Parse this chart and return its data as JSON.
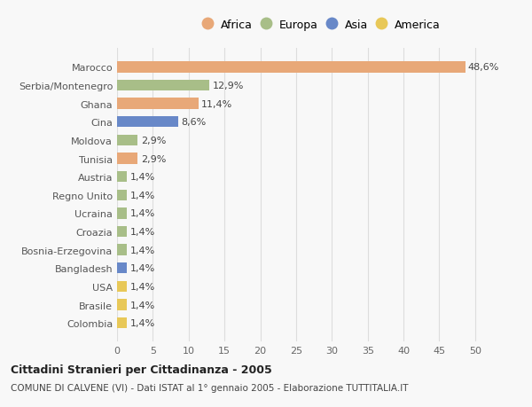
{
  "categories": [
    "Colombia",
    "Brasile",
    "USA",
    "Bangladesh",
    "Bosnia-Erzegovina",
    "Croazia",
    "Ucraina",
    "Regno Unito",
    "Austria",
    "Tunisia",
    "Moldova",
    "Cina",
    "Ghana",
    "Serbia/Montenegro",
    "Marocco"
  ],
  "values": [
    1.4,
    1.4,
    1.4,
    1.4,
    1.4,
    1.4,
    1.4,
    1.4,
    1.4,
    2.9,
    2.9,
    8.6,
    11.4,
    12.9,
    48.6
  ],
  "bar_colors": [
    "#E8C858",
    "#E8C858",
    "#E8C858",
    "#6888C8",
    "#A8BE88",
    "#A8BE88",
    "#A8BE88",
    "#A8BE88",
    "#A8BE88",
    "#E8A878",
    "#A8BE88",
    "#6888C8",
    "#E8A878",
    "#A8BE88",
    "#E8A878"
  ],
  "labels": [
    "1,4%",
    "1,4%",
    "1,4%",
    "1,4%",
    "1,4%",
    "1,4%",
    "1,4%",
    "1,4%",
    "1,4%",
    "2,9%",
    "2,9%",
    "8,6%",
    "11,4%",
    "12,9%",
    "48,6%"
  ],
  "title": "Cittadini Stranieri per Cittadinanza - 2005",
  "subtitle": "COMUNE DI CALVENE (VI) - Dati ISTAT al 1° gennaio 2005 - Elaborazione TUTTITALIA.IT",
  "xlim": [
    0,
    52
  ],
  "xticks": [
    0,
    5,
    10,
    15,
    20,
    25,
    30,
    35,
    40,
    45,
    50
  ],
  "background_color": "#f8f8f8",
  "grid_color": "#dddddd",
  "legend_labels": [
    "Africa",
    "Europa",
    "Asia",
    "America"
  ],
  "legend_colors": [
    "#E8A878",
    "#A8BE88",
    "#6888C8",
    "#E8C858"
  ]
}
